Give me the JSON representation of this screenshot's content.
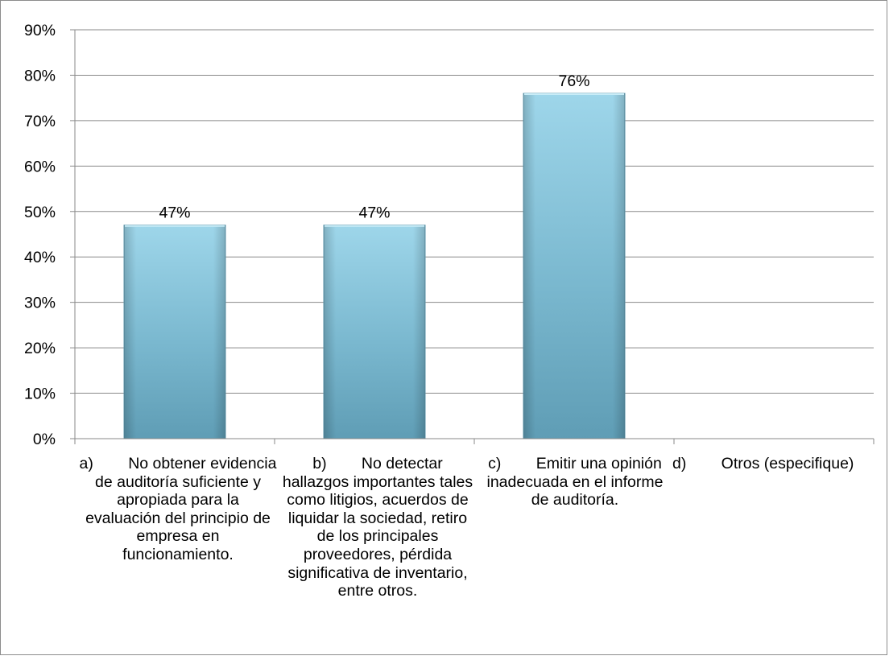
{
  "chart_data": {
    "type": "bar",
    "categories": [
      "a)        No obtener evidencia de auditoría suficiente y apropiada para la evaluación del principio de empresa en funcionamiento.",
      "b)        No detectar hallazgos importantes tales como litigios, acuerdos de liquidar la sociedad, retiro de los principales proveedores, pérdida significativa de inventario, entre otros.",
      "c)        Emitir una opinión inadecuada en el informe de auditoría.",
      "d)        Otros (especifique)"
    ],
    "values": [
      47,
      47,
      76,
      0
    ],
    "data_labels": [
      "47%",
      "47%",
      "76%",
      ""
    ],
    "ylim": [
      0,
      90
    ],
    "yticks": [
      "0%",
      "10%",
      "20%",
      "30%",
      "40%",
      "50%",
      "60%",
      "70%",
      "80%",
      "90%"
    ],
    "title": "",
    "xlabel": "",
    "ylabel": "",
    "grid": true,
    "bar_color": "#7fc4dc",
    "legend": "none"
  }
}
